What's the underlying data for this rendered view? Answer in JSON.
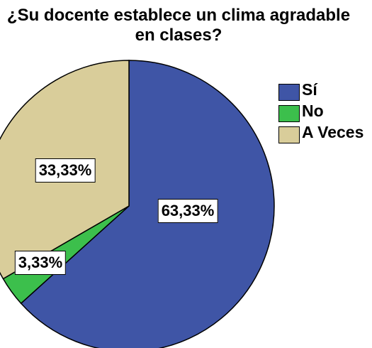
{
  "chart_data": {
    "type": "pie",
    "title": "¿Su docente establece un clima agradable en clases?",
    "categories": [
      "Sí",
      "No",
      "A Veces"
    ],
    "values": [
      63.33,
      3.33,
      33.33
    ],
    "value_labels": [
      "63,33%",
      "3,33%",
      "33,33%"
    ],
    "colors": [
      "#3f55a6",
      "#3cbf4c",
      "#d9cd9a"
    ],
    "legend": "right"
  }
}
